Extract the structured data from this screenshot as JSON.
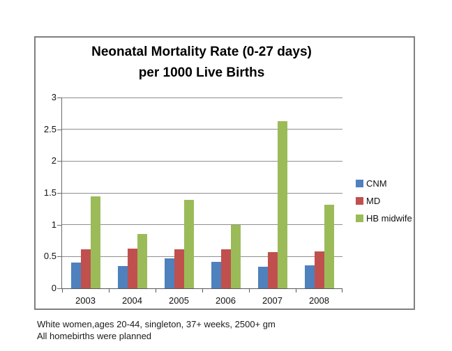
{
  "chart_data": {
    "type": "bar",
    "title_line1": "Neonatal Mortality Rate (0-27 days)",
    "title_line2": "per 1000 Live Births",
    "categories": [
      "2003",
      "2004",
      "2005",
      "2006",
      "2007",
      "2008"
    ],
    "series": [
      {
        "name": "CNM",
        "color": "#4f81bd",
        "values": [
          0.4,
          0.35,
          0.47,
          0.42,
          0.34,
          0.36
        ]
      },
      {
        "name": "MD",
        "color": "#c0504d",
        "values": [
          0.61,
          0.62,
          0.61,
          0.61,
          0.57,
          0.58
        ]
      },
      {
        "name": "HB midwife",
        "color": "#9bbb59",
        "values": [
          1.44,
          0.85,
          1.39,
          1.0,
          2.63,
          1.31
        ]
      }
    ],
    "y_ticks": [
      0,
      0.5,
      1,
      1.5,
      2,
      2.5,
      3
    ],
    "ylim": [
      0,
      3
    ],
    "grid": true,
    "legend_position": "right",
    "xlabel": "",
    "ylabel": ""
  },
  "footnote": {
    "line1": "White women,ages 20-44, singleton, 37+ weeks, 2500+ gm",
    "line2": "All homebirths were planned"
  },
  "colors": {
    "series_cnm": "#4f81bd",
    "series_md": "#c0504d",
    "series_hb_midwife": "#9bbb59"
  }
}
